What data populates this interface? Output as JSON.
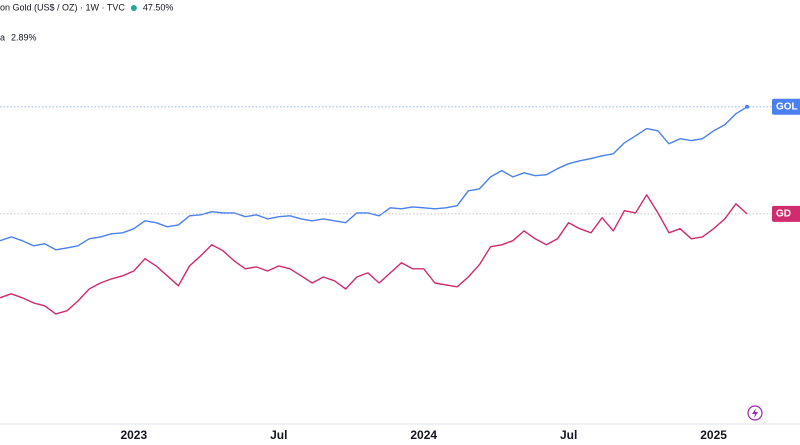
{
  "chart_data": {
    "type": "line",
    "categories": [
      null,
      null,
      null,
      null,
      null,
      null,
      null,
      null,
      null,
      null,
      null,
      null,
      "2023",
      null,
      null,
      null,
      null,
      null,
      null,
      null,
      null,
      null,
      null,
      null,
      null,
      "Jul",
      null,
      null,
      null,
      null,
      null,
      null,
      null,
      null,
      null,
      null,
      null,
      null,
      "2024",
      null,
      null,
      null,
      null,
      null,
      null,
      null,
      null,
      null,
      null,
      null,
      null,
      "Jul",
      null,
      null,
      null,
      null,
      null,
      null,
      null,
      null,
      null,
      null,
      null,
      null,
      "2025",
      null,
      null,
      null
    ],
    "ylim": [
      -83,
      92
    ],
    "series": [
      {
        "name": "on Gold (US$ / OZ) · 1W · TVC",
        "color": "#4a80ef",
        "last_label": "47.50%",
        "tag": "GOL",
        "values": [
          -8.3,
          -6.7,
          -8.3,
          -10.4,
          -9.6,
          -12.1,
          -11.3,
          -10.4,
          -7.5,
          -6.7,
          -5.4,
          -5.0,
          -3.3,
          0,
          -0.8,
          -2.5,
          -1.7,
          2.1,
          2.5,
          3.8,
          3.3,
          3.3,
          1.7,
          2.5,
          0.8,
          1.7,
          2.1,
          0.8,
          0,
          0.8,
          0,
          -0.8,
          3.3,
          3.3,
          2.1,
          5.4,
          5.0,
          5.8,
          5.4,
          5.0,
          5.4,
          6.3,
          12.5,
          13.3,
          18.3,
          20.9,
          18.3,
          20.0,
          18.8,
          19.2,
          21.7,
          23.8,
          25.0,
          25.9,
          27.1,
          27.9,
          32.5,
          35.4,
          38.4,
          37.5,
          32.1,
          34.2,
          33.4,
          34.2,
          37.5,
          40.0,
          44.6,
          47.5
        ]
      },
      {
        "name": "a",
        "color": "#d12b6f",
        "last_label": "2.89%",
        "tag": "GD",
        "values": [
          -32.1,
          -30.4,
          -32.1,
          -34.2,
          -35.4,
          -38.8,
          -37.5,
          -33.4,
          -28.4,
          -25.9,
          -24.2,
          -22.9,
          -20.9,
          -15.8,
          -18.8,
          -22.9,
          -27.1,
          -18.8,
          -14.6,
          -10.0,
          -12.5,
          -16.7,
          -20.0,
          -19.2,
          -20.9,
          -18.8,
          -20.0,
          -22.9,
          -25.9,
          -23.4,
          -25.0,
          -28.4,
          -23.4,
          -21.7,
          -25.9,
          -21.7,
          -17.5,
          -20.0,
          -20.0,
          -25.9,
          -26.7,
          -27.5,
          -23.4,
          -18.3,
          -10.8,
          -10.0,
          -8.3,
          -4.2,
          -7.5,
          -10.0,
          -7.5,
          -0.8,
          -3.3,
          -5.0,
          1.3,
          -4.2,
          4.2,
          3.3,
          10.8,
          3.3,
          -5.0,
          -3.3,
          -7.5,
          -6.7,
          -3.3,
          0.8,
          7.1,
          2.89
        ]
      }
    ]
  }
}
